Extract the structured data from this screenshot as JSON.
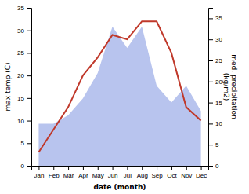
{
  "chart_data": {
    "type": "line",
    "categories": [
      "Jan",
      "Feb",
      "Mar",
      "Apr",
      "May",
      "Jun",
      "Jul",
      "Aug",
      "Sep",
      "Oct",
      "Nov",
      "Dec"
    ],
    "series": [
      {
        "type": "area",
        "color": "#b8c4ee",
        "axis": "y2",
        "values": [
          10,
          10,
          12,
          16,
          22,
          33,
          28,
          33,
          19,
          15,
          19,
          13
        ]
      },
      {
        "type": "line",
        "color": "#c0392b",
        "values": [
          3,
          8,
          13,
          20,
          24,
          29,
          28,
          32,
          32,
          25,
          13,
          10
        ]
      }
    ],
    "xlabel": "date (month)",
    "ylabel": "max temp (C)",
    "y2label": "med. precipitation\n(kg/m2)",
    "ylim": [
      0,
      35
    ],
    "yticks": [
      0,
      5,
      10,
      15,
      20,
      25,
      30,
      35
    ],
    "y2lim": [
      0,
      37.5
    ],
    "y2ticks": [
      0,
      5,
      10,
      15,
      20,
      25,
      30,
      35
    ],
    "grid": false
  }
}
